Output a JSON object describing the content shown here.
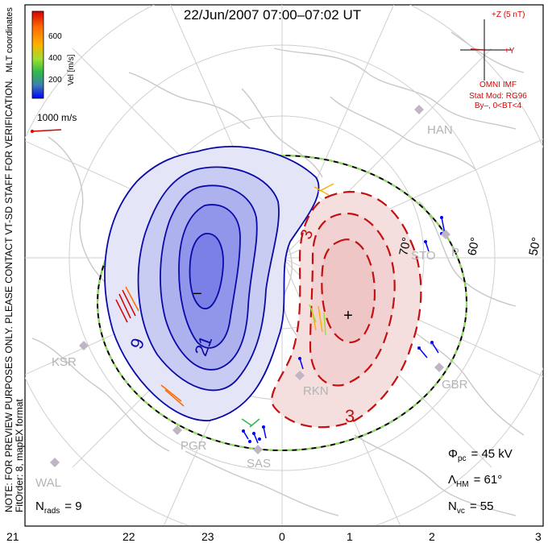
{
  "title": "22/Jun/2007 07:00–07:02 UT",
  "colorbar": {
    "label": "Vel [m/s]",
    "ticks": [
      "600",
      "400",
      "200"
    ],
    "colors": [
      "#d40000",
      "#ff6a00",
      "#ffb000",
      "#9ce030",
      "#2fb84a",
      "#3d7fb0",
      "#0000ff"
    ]
  },
  "coord_system": "MLT coordinates",
  "reference_vector": {
    "label": "1000 m/s",
    "color": "#dd0000"
  },
  "side_note": {
    "line1": "NOTE: FOR PREVIEW PURPOSES ONLY. PLEASE CONTACT VT-SD STAFF FOR VERIFICATION.",
    "line2": "FitOrder: 8, mapEX format"
  },
  "imf": {
    "z_label": "+Z (5 nT)",
    "y_label": "+Y",
    "source": "OMNI IMF",
    "model": "Stat Mod: RG96",
    "condition": "By–, 0<BT<4",
    "color": "#dd0000"
  },
  "latitude_labels": [
    "70°",
    "60°",
    "50°"
  ],
  "contours": {
    "negative_label_1": "9",
    "negative_label_2": "21",
    "positive_label_1": "3",
    "positive_label_2": "3",
    "minus_marker": "−",
    "plus_marker": "+",
    "negative_color": "#0a0aa8",
    "positive_color": "#c41010"
  },
  "sites": [
    {
      "code": "HAN"
    },
    {
      "code": "STO"
    },
    {
      "code": "KSR"
    },
    {
      "code": "RKN"
    },
    {
      "code": "GBR"
    },
    {
      "code": "PGR"
    },
    {
      "code": "SAS"
    },
    {
      "code": "WAL"
    },
    {
      "code": "P"
    }
  ],
  "stats": {
    "n_rads": {
      "symbol": "N",
      "sub": "rads",
      "value": "= 9"
    },
    "phi_pc": {
      "symbol": "Φ",
      "sub": "pc",
      "value": "= 45 kV"
    },
    "lambda_hm": {
      "symbol": "Λ",
      "sub": "HM",
      "value": "= 61°"
    },
    "n_vc": {
      "symbol": "N",
      "sub": "vc",
      "value": "= 55"
    }
  },
  "mlt_axis": [
    "21",
    "22",
    "23",
    "0",
    "1",
    "2",
    "3"
  ]
}
